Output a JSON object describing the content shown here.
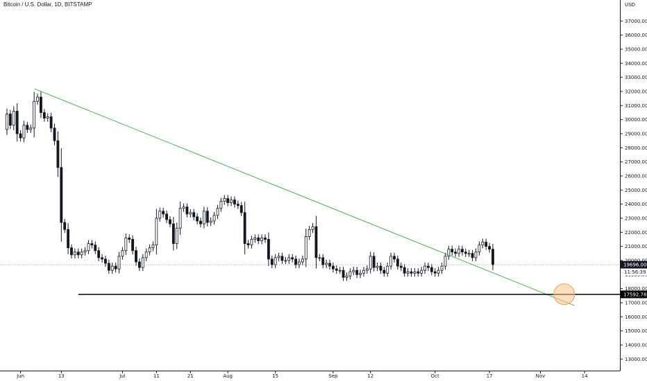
{
  "chart_data": {
    "type": "candlestick",
    "title": "Bitcoin / U.S. Dollar, 1D, BITSTAMP",
    "currency_label": "USD",
    "ylim": [
      12500,
      38000
    ],
    "y_ticks": [
      13000,
      14000,
      15000,
      16000,
      17000,
      18000,
      19000,
      20000,
      21000,
      22000,
      23000,
      24000,
      25000,
      26000,
      27000,
      28000,
      29000,
      30000,
      31000,
      32000,
      33000,
      34000,
      35000,
      36000,
      37000
    ],
    "x_range": [
      "2022-05-28",
      "2022-11-15"
    ],
    "x_ticks": [
      {
        "date": "2022-06-01",
        "label": "Jun"
      },
      {
        "date": "2022-06-13",
        "label": "13"
      },
      {
        "date": "2022-07-01",
        "label": "Jul"
      },
      {
        "date": "2022-07-11",
        "label": "11"
      },
      {
        "date": "2022-07-21",
        "label": "21"
      },
      {
        "date": "2022-08-01",
        "label": "Aug"
      },
      {
        "date": "2022-08-15",
        "label": "15"
      },
      {
        "date": "2022-09-01",
        "label": "Sep"
      },
      {
        "date": "2022-09-12",
        "label": "12"
      },
      {
        "date": "2022-10-01",
        "label": "Oct"
      },
      {
        "date": "2022-10-17",
        "label": "17"
      },
      {
        "date": "2022-11-01",
        "label": "Nov"
      },
      {
        "date": "2022-11-14",
        "label": "14"
      }
    ],
    "start_date": "2022-05-28",
    "closes": [
      30400,
      29600,
      30600,
      29000,
      28700,
      29600,
      29300,
      29400,
      31300,
      31600,
      30500,
      30100,
      30200,
      29400,
      28500,
      26600,
      22700,
      22200,
      20900,
      20400,
      20600,
      20400,
      20600,
      20700,
      21200,
      21100,
      20700,
      20200,
      20100,
      19800,
      19300,
      19600,
      19400,
      20300,
      20700,
      21600,
      21500,
      20700,
      19900,
      19500,
      20200,
      20600,
      20900,
      21100,
      23000,
      23500,
      23300,
      22900,
      22600,
      21200,
      22300,
      23700,
      23800,
      23300,
      23400,
      23100,
      22800,
      22600,
      23500,
      22700,
      22800,
      23200,
      23700,
      24200,
      24400,
      24100,
      24300,
      24000,
      23900,
      23400,
      21200,
      21100,
      21500,
      21600,
      21400,
      21600,
      21500,
      20100,
      19700,
      20200,
      20300,
      20000,
      20000,
      20200,
      20100,
      19700,
      19900,
      20100,
      21700,
      22200,
      22400,
      20200,
      20200,
      19700,
      19800,
      19600,
      19400,
      19300,
      19300,
      18800,
      18900,
      19200,
      19300,
      19000,
      19100,
      19300,
      19400,
      20300,
      19500,
      19600,
      19300,
      19100,
      19600,
      20300,
      20100,
      19600,
      19500,
      19100,
      19200,
      19100,
      19200,
      19100,
      19300,
      19600,
      19500,
      19200,
      19100,
      19300,
      19600,
      20300,
      20800,
      20600,
      20500,
      20800,
      20600,
      20500,
      20500,
      20200,
      20600,
      21100,
      21300,
      21000,
      20800,
      19700
    ],
    "first_open": 29300,
    "current_price": 19696.0,
    "countdown": "11:56:39",
    "horizontal_level": 17592.78,
    "trendline": {
      "start": [
        "2022-06-05",
        32200
      ],
      "end": [
        "2022-11-11",
        16800
      ]
    },
    "highlight_circle": {
      "date": "2022-11-08",
      "price": 17600
    },
    "colors": {
      "candle_up_body": "#ffffff",
      "candle_down_body": "#131722",
      "candle_outline": "#131722",
      "trendline": "#4caf50",
      "level_line": "#000000",
      "circle_fill": "#f8c488",
      "circle_stroke": "#f0a050",
      "price_label_bg": "#131722",
      "countdown_bg": "#ffffff"
    }
  }
}
